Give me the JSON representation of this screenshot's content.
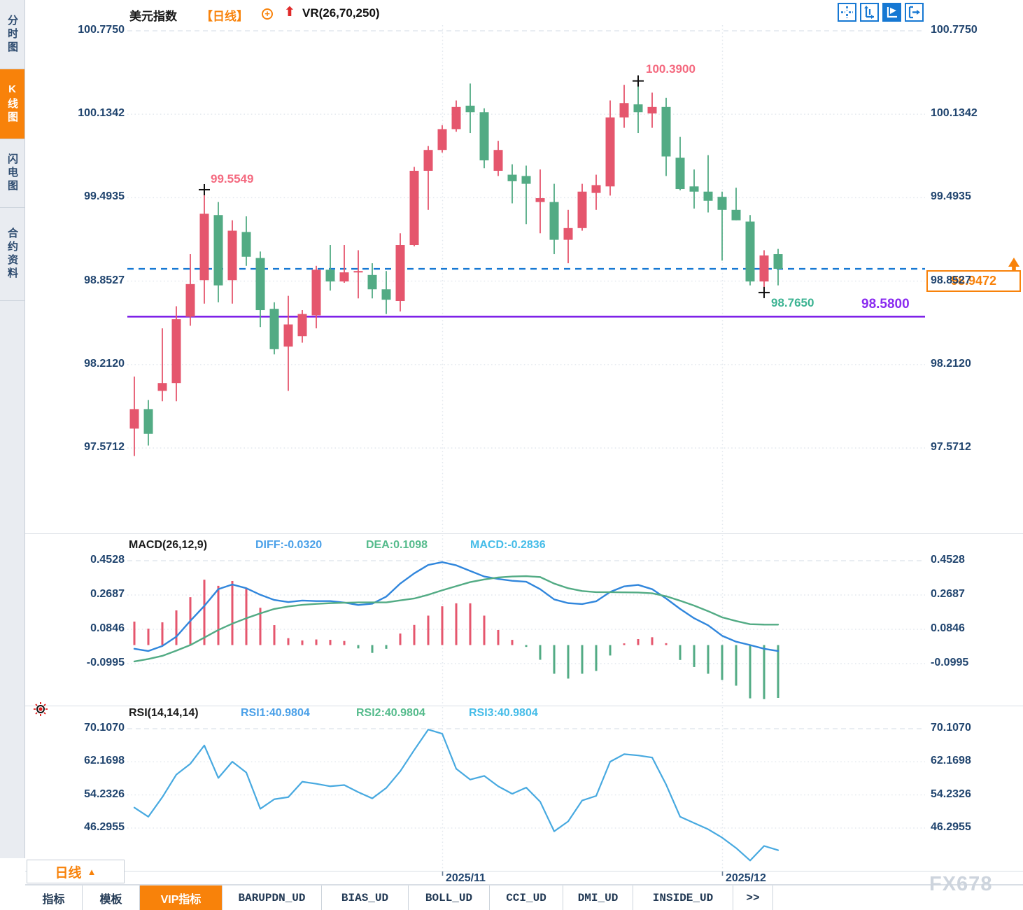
{
  "sidebar": {
    "items": [
      {
        "label": "分时图",
        "active": false
      },
      {
        "label": "K线图",
        "active": true
      },
      {
        "label": "闪电图",
        "active": false
      },
      {
        "label": "合约资料",
        "active": false
      }
    ]
  },
  "header": {
    "symbol": "美元指数",
    "period": "【日线】",
    "vr_label": "VR(26,70,250)",
    "add_icon": "+",
    "arrow": "⬆"
  },
  "toolbar": {
    "buttons": [
      {
        "name": "crosshair",
        "active": false
      },
      {
        "name": "axis-range",
        "active": false
      },
      {
        "name": "auto-scale",
        "active": true
      },
      {
        "name": "jump-to-latest",
        "active": false
      }
    ]
  },
  "price_pane": {
    "axis_labels": [
      "100.7750",
      "100.1342",
      "99.4935",
      "98.8527",
      "98.2120",
      "97.5712"
    ],
    "annotations": {
      "swing_high_1": "99.5549",
      "swing_high_2": "100.3900",
      "swing_low": "98.7650",
      "support_level": "98.5800",
      "last_price": "98.9472"
    }
  },
  "macd_pane": {
    "title": "MACD(26,12,9)",
    "diff_label": "DIFF:-0.0320",
    "dea_label": "DEA:0.1098",
    "macd_label": "MACD:-0.2836",
    "axis_labels": [
      "0.4528",
      "0.2687",
      "0.0846",
      "-0.0995"
    ]
  },
  "rsi_pane": {
    "title": "RSI(14,14,14)",
    "rsi1_label": "RSI1:40.9804",
    "rsi2_label": "RSI2:40.9804",
    "rsi3_label": "RSI3:40.9804",
    "axis_labels": [
      "70.1070",
      "62.1698",
      "54.2326",
      "46.2955"
    ]
  },
  "x_axis": {
    "labels": [
      "2025/11",
      "2025/12"
    ]
  },
  "period_button": {
    "label": "日线",
    "arrow": "▲"
  },
  "bottom_tabs": [
    {
      "label": "指标",
      "cn": true,
      "active": false
    },
    {
      "label": "模板",
      "cn": true,
      "active": false
    },
    {
      "label": "VIP指标",
      "cn": true,
      "active": true
    },
    {
      "label": "BARUPDN_UD",
      "cn": false,
      "active": false
    },
    {
      "label": "BIAS_UD",
      "cn": false,
      "active": false
    },
    {
      "label": "BOLL_UD",
      "cn": false,
      "active": false
    },
    {
      "label": "CCI_UD",
      "cn": false,
      "active": false
    },
    {
      "label": "DMI_UD",
      "cn": false,
      "active": false
    },
    {
      "label": "INSIDE_UD",
      "cn": false,
      "active": false
    },
    {
      "label": ">>",
      "cn": false,
      "active": false
    }
  ],
  "watermark": "FX678",
  "colors": {
    "up": "#e5566d",
    "down": "#52ab84",
    "blue_dashed": "#1678d3",
    "macd_diff": "#3086dc",
    "macd_dea": "#52ab84",
    "rsi_line": "#47a9e0",
    "orange": "#f8820a",
    "purple": "#7e22e8",
    "axis_text": "#21456f",
    "ann_red": "#f4697f",
    "ann_green": "#3cb392",
    "ann_purple": "#8a2bf0"
  },
  "chart_data": [
    {
      "type": "candlestick",
      "title": "美元指数 日线",
      "ylim": [
        97.5712,
        100.775
      ],
      "yticks": [
        100.775,
        100.1342,
        99.4935,
        98.8527,
        98.212,
        97.5712
      ],
      "x_labels": [
        "2025/11",
        "2025/12"
      ],
      "x_label_indices": [
        22,
        42
      ],
      "up_convention": "red rises / green falls (CN style)",
      "ohlc": [
        [
          97.72,
          98.12,
          97.51,
          97.87
        ],
        [
          97.87,
          97.94,
          97.59,
          97.68
        ],
        [
          98.01,
          98.49,
          97.93,
          98.07
        ],
        [
          98.07,
          98.66,
          97.93,
          98.56
        ],
        [
          98.58,
          99.06,
          98.51,
          98.83
        ],
        [
          98.86,
          99.5549,
          98.68,
          99.37
        ],
        [
          99.36,
          99.46,
          98.69,
          98.82
        ],
        [
          98.86,
          99.32,
          98.68,
          99.24
        ],
        [
          99.23,
          99.35,
          98.97,
          99.04
        ],
        [
          99.03,
          99.08,
          98.5,
          98.63
        ],
        [
          98.64,
          98.69,
          98.29,
          98.33
        ],
        [
          98.35,
          98.74,
          98.01,
          98.52
        ],
        [
          98.43,
          98.63,
          98.38,
          98.6
        ],
        [
          98.59,
          98.97,
          98.49,
          98.94
        ],
        [
          98.94,
          99.13,
          98.78,
          98.85
        ],
        [
          98.85,
          99.13,
          98.84,
          98.92
        ],
        [
          98.92,
          99.09,
          98.72,
          98.93
        ],
        [
          98.9,
          98.99,
          98.72,
          98.79
        ],
        [
          98.79,
          98.93,
          98.6,
          98.71
        ],
        [
          98.7,
          99.22,
          98.62,
          99.13
        ],
        [
          99.13,
          99.73,
          99.12,
          99.7
        ],
        [
          99.7,
          99.89,
          99.4,
          99.86
        ],
        [
          99.86,
          100.05,
          99.84,
          100.02
        ],
        [
          100.02,
          100.24,
          100.0,
          100.19
        ],
        [
          100.2,
          100.37,
          99.99,
          100.15
        ],
        [
          100.15,
          100.18,
          99.72,
          99.78
        ],
        [
          99.7,
          99.93,
          99.66,
          99.86
        ],
        [
          99.67,
          99.75,
          99.45,
          99.62
        ],
        [
          99.66,
          99.74,
          99.29,
          99.6
        ],
        [
          99.46,
          99.71,
          99.22,
          99.49
        ],
        [
          99.46,
          99.6,
          99.06,
          99.17
        ],
        [
          99.17,
          99.4,
          98.99,
          99.26
        ],
        [
          99.26,
          99.6,
          99.24,
          99.54
        ],
        [
          99.53,
          99.67,
          99.4,
          99.59
        ],
        [
          99.58,
          100.24,
          99.51,
          100.11
        ],
        [
          100.11,
          100.36,
          100.03,
          100.22
        ],
        [
          100.21,
          100.39,
          99.99,
          100.15
        ],
        [
          100.14,
          100.3,
          100.03,
          100.19
        ],
        [
          100.19,
          100.26,
          99.66,
          99.81
        ],
        [
          99.8,
          99.96,
          99.55,
          99.56
        ],
        [
          99.58,
          99.71,
          99.41,
          99.54
        ],
        [
          99.54,
          99.82,
          99.38,
          99.47
        ],
        [
          99.5,
          99.54,
          99.01,
          99.4
        ],
        [
          99.4,
          99.57,
          99.32,
          99.32
        ],
        [
          99.31,
          99.36,
          98.82,
          98.85
        ],
        [
          98.85,
          99.09,
          98.765,
          99.05
        ],
        [
          99.06,
          99.1,
          98.82,
          98.9472
        ]
      ],
      "markers": [
        {
          "index": 5,
          "price": 99.5549,
          "label": "99.5549",
          "kind": "high"
        },
        {
          "index": 36,
          "price": 100.39,
          "label": "100.3900",
          "kind": "high"
        },
        {
          "index": 45,
          "price": 98.765,
          "label": "98.7650",
          "kind": "low"
        }
      ],
      "levels": {
        "last_close": {
          "value": 98.9472,
          "style": "dashed-blue"
        },
        "support": {
          "value": 98.58,
          "style": "solid-purple"
        }
      }
    },
    {
      "type": "bar",
      "name": "MACD(26,12,9)",
      "legend": {
        "diff": -0.032,
        "dea": 0.1098,
        "macd": -0.2836
      },
      "yticks": [
        0.4528,
        0.2687,
        0.0846,
        -0.0995
      ],
      "histogram": [
        0.126,
        0.088,
        0.122,
        0.186,
        0.257,
        0.351,
        0.318,
        0.344,
        0.306,
        0.2,
        0.107,
        0.037,
        0.025,
        0.03,
        0.028,
        0.022,
        -0.018,
        -0.042,
        -0.02,
        0.062,
        0.108,
        0.158,
        0.208,
        0.224,
        0.224,
        0.158,
        0.081,
        0.028,
        -0.01,
        -0.079,
        -0.154,
        -0.18,
        -0.154,
        -0.139,
        -0.056,
        0.009,
        0.032,
        0.042,
        0.01,
        -0.08,
        -0.118,
        -0.154,
        -0.187,
        -0.218,
        -0.286,
        -0.29,
        -0.2836
      ],
      "diff_line": [
        -0.02,
        -0.032,
        -0.005,
        0.045,
        0.13,
        0.21,
        0.3,
        0.325,
        0.305,
        0.27,
        0.242,
        0.231,
        0.239,
        0.236,
        0.236,
        0.228,
        0.215,
        0.222,
        0.26,
        0.33,
        0.385,
        0.43,
        0.445,
        0.428,
        0.398,
        0.368,
        0.355,
        0.345,
        0.34,
        0.3,
        0.245,
        0.225,
        0.22,
        0.235,
        0.285,
        0.315,
        0.323,
        0.3,
        0.25,
        0.194,
        0.144,
        0.106,
        0.05,
        0.018,
        0.0,
        -0.02,
        -0.032
      ],
      "dea_line": [
        -0.088,
        -0.075,
        -0.058,
        -0.03,
        0.0,
        0.04,
        0.081,
        0.115,
        0.144,
        0.17,
        0.194,
        0.207,
        0.216,
        0.221,
        0.225,
        0.227,
        0.229,
        0.229,
        0.229,
        0.24,
        0.25,
        0.27,
        0.294,
        0.316,
        0.338,
        0.352,
        0.363,
        0.368,
        0.37,
        0.365,
        0.33,
        0.305,
        0.29,
        0.284,
        0.284,
        0.283,
        0.282,
        0.278,
        0.262,
        0.238,
        0.212,
        0.182,
        0.149,
        0.129,
        0.112,
        0.11,
        0.1098
      ]
    },
    {
      "type": "line",
      "name": "RSI(14,14,14)",
      "legend": {
        "rsi1": 40.9804,
        "rsi2": 40.9804,
        "rsi3": 40.9804
      },
      "yticks": [
        70.107,
        62.1698,
        54.2326,
        46.2955
      ],
      "values": [
        51.2,
        49.0,
        53.7,
        59.1,
        61.7,
        66.1,
        58.3,
        62.2,
        59.6,
        50.9,
        53.2,
        53.7,
        57.4,
        56.9,
        56.3,
        56.6,
        54.9,
        53.4,
        55.9,
        59.9,
        65.0,
        69.9,
        68.9,
        60.5,
        57.9,
        58.8,
        56.3,
        54.5,
        56.0,
        52.6,
        45.5,
        47.9,
        52.9,
        54.0,
        62.2,
        64.0,
        63.7,
        63.2,
        56.7,
        49.0,
        47.5,
        46.0,
        44.0,
        41.5,
        38.5,
        42.0,
        40.9804
      ]
    }
  ]
}
